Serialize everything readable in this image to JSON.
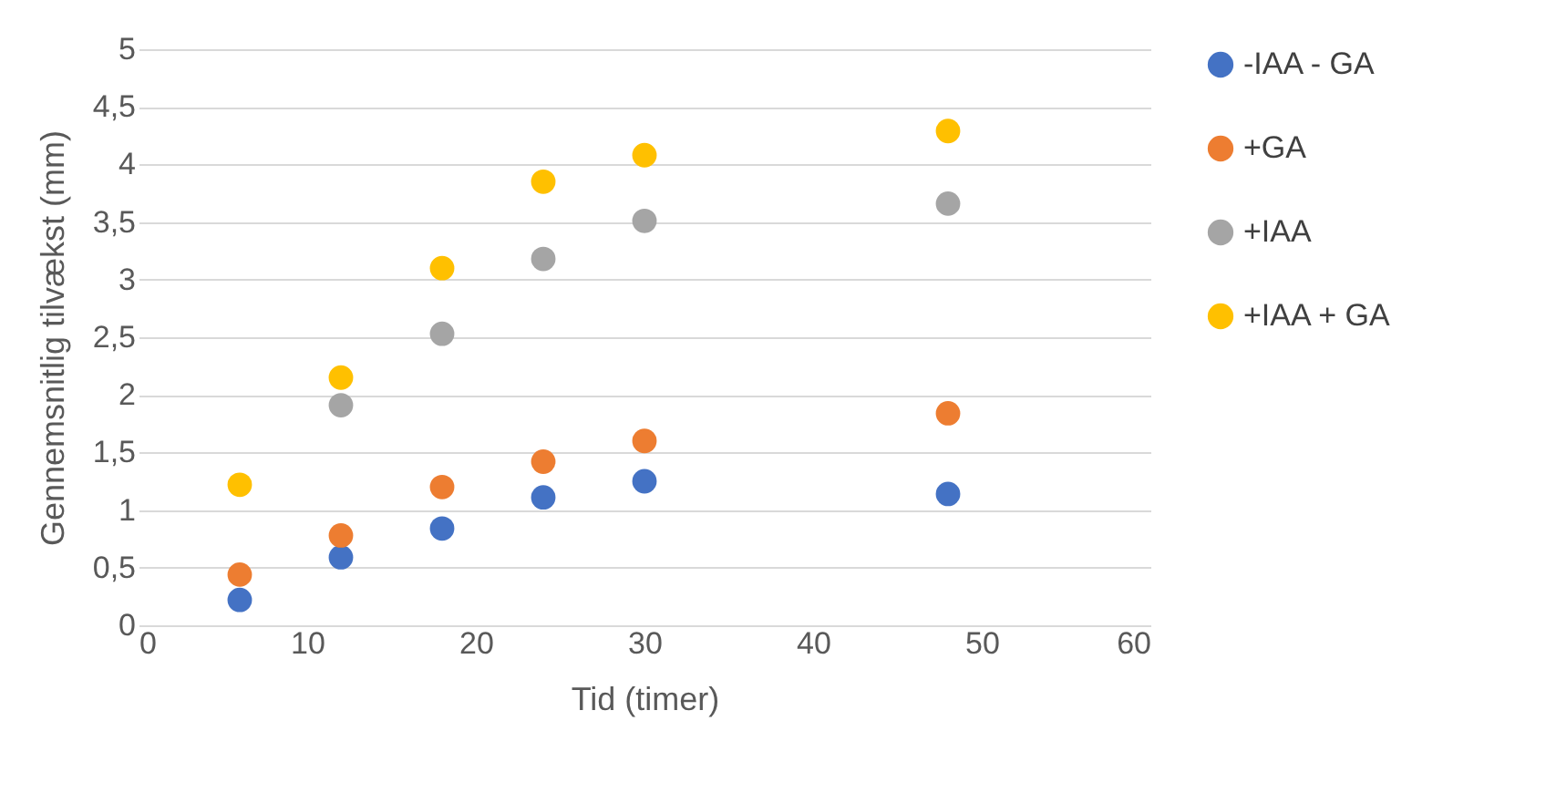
{
  "chart_data": {
    "type": "scatter",
    "xlabel": "Tid (timer)",
    "ylabel": "Gennemsnitlig tilvækst (mm)",
    "x": [
      6,
      12,
      18,
      24,
      30,
      48
    ],
    "series": [
      {
        "name": "-IAA - GA",
        "color": "#4472c4",
        "values": [
          0.22,
          0.59,
          0.84,
          1.11,
          1.25,
          1.14
        ]
      },
      {
        "name": "+GA",
        "color": "#ed7d31",
        "values": [
          0.44,
          0.78,
          1.2,
          1.42,
          1.6,
          1.84
        ]
      },
      {
        "name": "+IAA",
        "color": "#a5a5a5",
        "values": [
          null,
          1.91,
          2.53,
          3.18,
          3.51,
          3.66
        ]
      },
      {
        "name": "+IAA + GA",
        "color": "#ffc000",
        "values": [
          1.22,
          2.15,
          3.1,
          3.85,
          4.08,
          4.29
        ]
      }
    ],
    "xlim": [
      0,
      60
    ],
    "xticks": [
      0,
      10,
      20,
      30,
      40,
      50,
      60
    ],
    "ylim": [
      0,
      5
    ],
    "yticks": [
      0,
      {
        "value": 0.5,
        "label": "0,5"
      },
      1,
      {
        "value": 1.5,
        "label": "1,5"
      },
      2,
      {
        "value": 2.5,
        "label": "2,5"
      },
      3,
      {
        "value": 3.5,
        "label": "3,5"
      },
      4,
      {
        "value": 4.5,
        "label": "4,5"
      },
      5
    ],
    "grid": "y",
    "legend": "right",
    "marker": "circle"
  }
}
